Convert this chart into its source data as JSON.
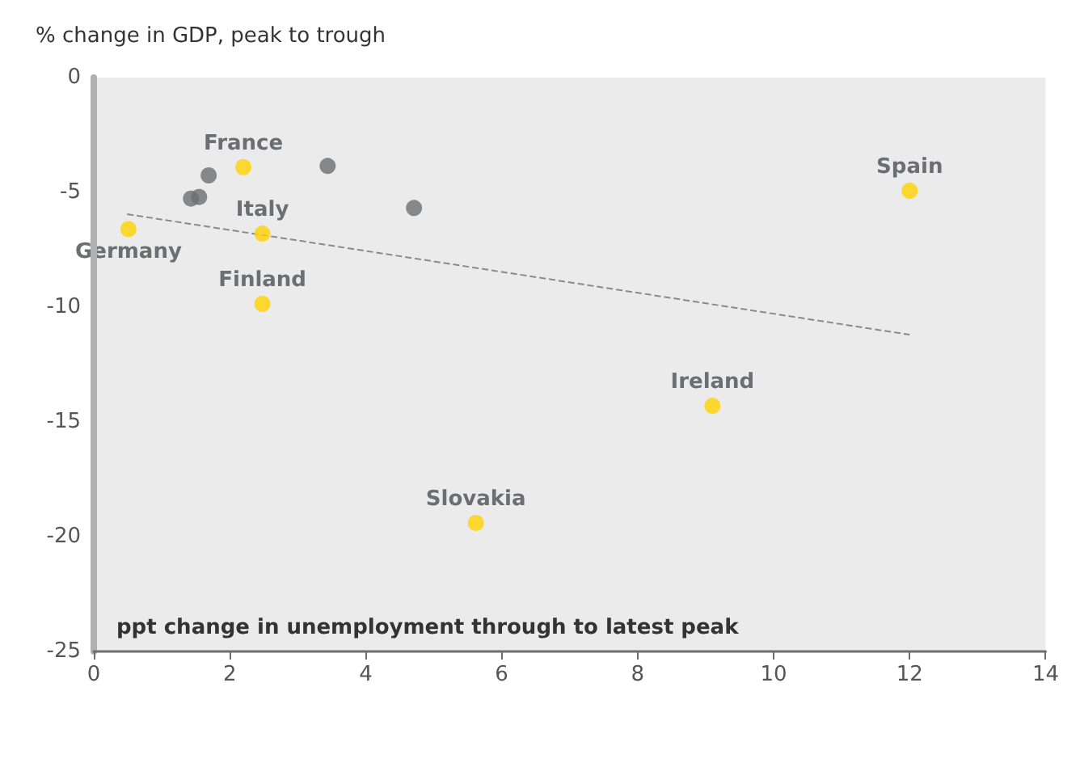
{
  "chart_data": {
    "type": "scatter",
    "xlabel": "ppt change in unemployment through to latest peak",
    "ylabel": "% change in GDP, peak to trough",
    "xlim": [
      0,
      14
    ],
    "xticks": [
      0,
      2,
      4,
      6,
      8,
      10,
      12,
      14
    ],
    "ylim": [
      -25,
      0
    ],
    "yticks": [
      -25,
      -20,
      -15,
      -10,
      -5,
      0
    ],
    "grid": false,
    "series": [
      {
        "marker": "circle",
        "color": "#6d6e71",
        "x": [
          1.43,
          1.55,
          1.69,
          3.44,
          4.71
        ],
        "values": [
          -5.27,
          -5.2,
          -4.26,
          -3.85,
          -5.68
        ]
      },
      {
        "marker": "circle",
        "color": "#ffd200",
        "x": [
          0.51,
          2.2,
          2.48,
          2.48,
          12.0,
          9.1,
          5.62
        ],
        "values": [
          -6.6,
          -3.9,
          -6.8,
          -9.86,
          -4.93,
          -14.3,
          -19.4
        ]
      },
      {
        "type": "line",
        "line_style": "dashed",
        "color": "#8a8a8a",
        "x": [
          0.49,
          12
        ],
        "values": [
          -5.95,
          -11.2
        ]
      }
    ],
    "annotations": [
      {
        "text": "Germany",
        "x": 0.51,
        "y": -6.6
      },
      {
        "text": "France",
        "x": 2.2,
        "y": -3.9
      },
      {
        "text": "Italy",
        "x": 2.48,
        "y": -6.8
      },
      {
        "text": "Finland",
        "x": 2.48,
        "y": -9.86
      },
      {
        "text": "Spain",
        "x": 12.0,
        "y": -4.93
      },
      {
        "text": "Ireland",
        "x": 9.1,
        "y": -14.3
      },
      {
        "text": "Slovakia",
        "x": 5.62,
        "y": -19.4
      }
    ]
  }
}
